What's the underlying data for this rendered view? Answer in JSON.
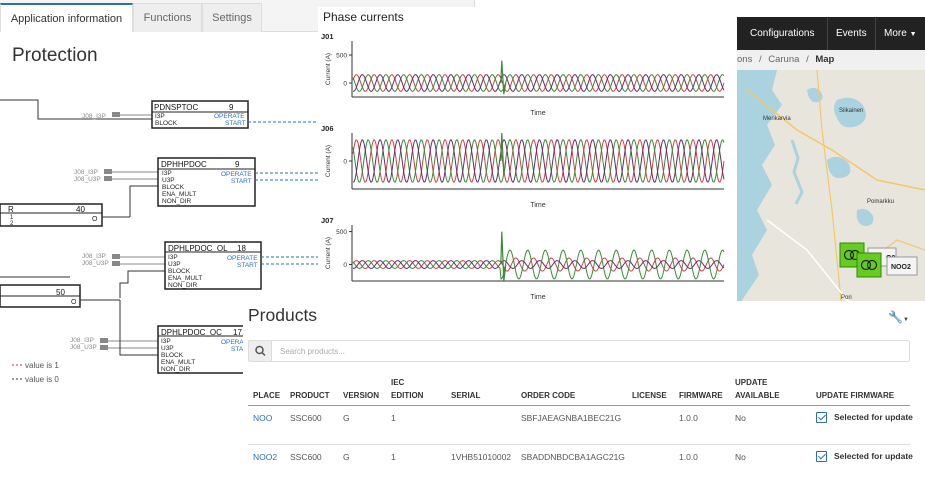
{
  "map": {
    "nav": {
      "configurations": "Configurations",
      "events": "Events",
      "more": "More"
    },
    "breadcrumb": {
      "prefix": "ons",
      "sep1": "/",
      "caruna": "Caruna",
      "sep2": "/",
      "current": "Map"
    },
    "places": {
      "merikarvia": "Merikarvia",
      "siikainen": "Siikainen",
      "pomarkku": "Pomarkku",
      "pori": "Pori"
    },
    "markers": {
      "noo_label": "O0",
      "noo2_label": "NOO2"
    },
    "colors": {
      "marker": "#66cc22",
      "water": "#aad3df"
    }
  },
  "protection": {
    "tabs": [
      {
        "label": "Application information",
        "active": true
      },
      {
        "label": "Functions",
        "active": false
      },
      {
        "label": "Settings",
        "active": false
      }
    ],
    "title": "Protection",
    "blocks": {
      "pdnsptoc": {
        "name": "PDNSPTOC",
        "num": "9",
        "inputs": [
          "I3P",
          "BLOCK"
        ],
        "outputs": [
          "OPERATE",
          "START"
        ],
        "conn": "J08_I3P"
      },
      "dphhpdoc": {
        "name": "DPHHPDOC",
        "num": "9",
        "inputs": [
          "I3P",
          "U3P",
          "BLOCK",
          "ENA_MULT",
          "NON_DIR"
        ],
        "outputs": [
          "OPERATE",
          "START"
        ],
        "conn1": "J08_I3P",
        "conn2": "J08_U3P"
      },
      "dphlpdoc_ol": {
        "name": "DPHLPDOC_OL",
        "num": "18",
        "inputs": [
          "I3P",
          "U3P",
          "BLOCK",
          "ENA_MULT",
          "NON_DIR"
        ],
        "outputs": [
          "OPERATE",
          "START"
        ],
        "conn1": "J08_I3P",
        "conn2": "J08_U3P"
      },
      "dphlpdoc_oc": {
        "name": "DPHLPDOC_OC",
        "num": "17",
        "inputs": [
          "I3P",
          "U3P",
          "BLOCK",
          "ENA_MULT",
          "NON_DIR"
        ],
        "outputs": [
          "OPERA",
          "STAR"
        ],
        "conn1": "J08_I3P",
        "conn2": "J08_U3P"
      },
      "or1": {
        "name": "R",
        "num": "40",
        "out": "O",
        "in1": "1",
        "in2": "2"
      },
      "or2": {
        "num": "50",
        "out": "O"
      }
    },
    "legend": {
      "value1": "value is 1",
      "value0": "value is 0"
    },
    "colors": {
      "active": "#2a6ebb",
      "value1": "#cc3333",
      "value0": "#333333"
    }
  },
  "phase_currents": {
    "title": "Phase currents",
    "colors": {
      "phase_a": "#cc4444",
      "phase_b": "#3a8a3a",
      "phase_c": "#6a2a6a"
    }
  },
  "chart_data": [
    {
      "type": "line",
      "title": "J01",
      "xlabel": "Time",
      "ylabel": "Current (A)",
      "yticks": [
        500,
        0
      ],
      "ylim": [
        -250,
        750
      ],
      "series": [
        {
          "pre_amplitude": 150,
          "post_amplitude": 150,
          "phase_deg": 0
        },
        {
          "pre_amplitude": 150,
          "post_amplitude": 150,
          "phase_deg": 120
        },
        {
          "pre_amplitude": 150,
          "post_amplitude": 150,
          "phase_deg": 240
        }
      ],
      "fault_spike": 400
    },
    {
      "type": "line",
      "title": "J06",
      "xlabel": "Time",
      "ylabel": "Current (A)",
      "yticks": [
        0
      ],
      "ylim": [
        -250,
        250
      ],
      "series": [
        {
          "pre_amplitude": 190,
          "post_amplitude": 190,
          "phase_deg": 0
        },
        {
          "pre_amplitude": 190,
          "post_amplitude": 190,
          "phase_deg": 120
        },
        {
          "pre_amplitude": 190,
          "post_amplitude": 190,
          "phase_deg": 240
        }
      ],
      "fault_spike": 250
    },
    {
      "type": "line",
      "title": "J07",
      "xlabel": "Time",
      "ylabel": "Current (A)",
      "yticks": [
        500,
        0
      ],
      "ylim": [
        -250,
        600
      ],
      "series": [
        {
          "pre_amplitude": 60,
          "post_amplitude": 100,
          "phase_deg": 0
        },
        {
          "pre_amplitude": 60,
          "post_amplitude": 220,
          "phase_deg": 120
        },
        {
          "pre_amplitude": 60,
          "post_amplitude": 60,
          "phase_deg": 240
        }
      ],
      "fault_spike": 500
    }
  ],
  "products": {
    "title": "Products",
    "search_placeholder": "Search products...",
    "headers": {
      "place": "PLACE",
      "product": "PRODUCT",
      "version": "VERSION",
      "iec1": "IEC",
      "iec2": "EDITION",
      "serial": "SERIAL",
      "order": "ORDER CODE",
      "license": "LICENSE",
      "firmware": "FIRMWARE",
      "upd1": "UPDATE",
      "upd2": "AVAILABLE",
      "update_fw": "UPDATE FIRMWARE"
    },
    "rows": [
      {
        "place": "NOO",
        "product": "SSC600",
        "version": "G",
        "iec": "1",
        "serial": "",
        "order": "SBFJAEAGNBA1BEC21G",
        "license": "",
        "firmware": "1.0.0",
        "update": "No",
        "selected": "Selected for update"
      },
      {
        "place": "NOO2",
        "product": "SSC600",
        "version": "G",
        "iec": "1",
        "serial": "1VHB51010002",
        "order": "SBADDNBDCBA1AGC21G",
        "license": "",
        "firmware": "1.0.0",
        "update": "No",
        "selected": "Selected for update"
      }
    ]
  }
}
